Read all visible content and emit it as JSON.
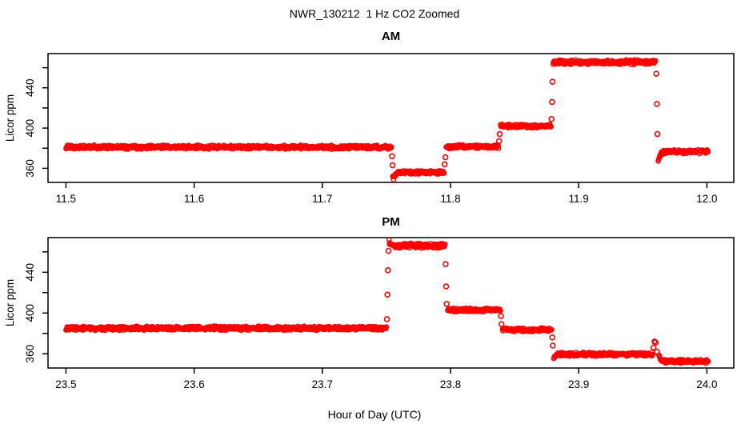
{
  "figure": {
    "title": "NWR_130212  1 Hz CO2 Zoomed",
    "xlabel": "Hour of Day (UTC)",
    "background_color": "#FFFFFF",
    "axis_color": "#000000",
    "point_color": "#FF0000"
  },
  "chart_data": [
    {
      "type": "scatter",
      "title": "AM",
      "ylabel": "Licor ppm",
      "marker": "open-circle",
      "color": "#FF0000",
      "sample_rate_hz": 1,
      "grid": false,
      "xlim": [
        11.486,
        12.021
      ],
      "ylim": [
        346,
        474
      ],
      "xticks": [
        "11.5",
        "11.6",
        "11.7",
        "11.8",
        "11.9",
        "12.0"
      ],
      "yticks": [
        360,
        380,
        400,
        420,
        440,
        460
      ],
      "ytick_labels": [
        "360",
        "",
        "400",
        "",
        "440",
        ""
      ],
      "segments": [
        {
          "x_start": 11.5,
          "x_end": 11.754,
          "ppm": 381.0,
          "noise": 1.5
        },
        {
          "x_start": 11.7556,
          "x_end": 11.795,
          "ppm": 356.0,
          "noise": 1.4,
          "start_settle_from": 349
        },
        {
          "x_start": 11.7966,
          "x_end": 11.8375,
          "ppm": 381.5,
          "noise": 1.4
        },
        {
          "x_start": 11.839,
          "x_end": 11.8785,
          "ppm": 402.0,
          "noise": 1.4
        },
        {
          "x_start": 11.88,
          "x_end": 11.96,
          "ppm": 465.5,
          "noise": 1.8
        },
        {
          "x_start": 11.962,
          "x_end": 12.001,
          "ppm": 376.5,
          "noise": 1.5,
          "start_settle_from": 366
        }
      ],
      "transition_points": [
        {
          "x": 11.7544,
          "ppm": 372
        },
        {
          "x": 11.7548,
          "ppm": 363
        },
        {
          "x": 11.7552,
          "ppm": 352
        },
        {
          "x": 11.7954,
          "ppm": 364
        },
        {
          "x": 11.796,
          "ppm": 371
        },
        {
          "x": 11.8379,
          "ppm": 387
        },
        {
          "x": 11.8384,
          "ppm": 394
        },
        {
          "x": 11.8788,
          "ppm": 409
        },
        {
          "x": 11.8792,
          "ppm": 426
        },
        {
          "x": 11.8796,
          "ppm": 446
        },
        {
          "x": 11.9606,
          "ppm": 454
        },
        {
          "x": 11.961,
          "ppm": 424
        },
        {
          "x": 11.9614,
          "ppm": 394
        }
      ]
    },
    {
      "type": "scatter",
      "title": "PM",
      "ylabel": "Licor ppm",
      "marker": "open-circle",
      "color": "#FF0000",
      "sample_rate_hz": 1,
      "grid": false,
      "xlim": [
        23.486,
        24.021
      ],
      "ylim": [
        346,
        474
      ],
      "xticks": [
        "23.5",
        "23.6",
        "23.7",
        "23.8",
        "23.9",
        "24.0"
      ],
      "yticks": [
        360,
        380,
        400,
        420,
        440,
        460
      ],
      "ytick_labels": [
        "360",
        "",
        "400",
        "",
        "440",
        ""
      ],
      "segments": [
        {
          "x_start": 23.5,
          "x_end": 23.75,
          "ppm": 385.0,
          "noise": 1.5
        },
        {
          "x_start": 23.752,
          "x_end": 23.7958,
          "ppm": 466.0,
          "noise": 1.8,
          "start_settle_from": 470
        },
        {
          "x_start": 23.7978,
          "x_end": 23.839,
          "ppm": 403.0,
          "noise": 1.4
        },
        {
          "x_start": 23.8405,
          "x_end": 23.879,
          "ppm": 383.5,
          "noise": 1.4
        },
        {
          "x_start": 23.8805,
          "x_end": 23.9578,
          "ppm": 359.5,
          "noise": 1.4,
          "start_settle_from": 355
        },
        {
          "x_start": 23.9625,
          "x_end": 24.001,
          "ppm": 352.5,
          "noise": 1.3,
          "start_settle_from": 359
        }
      ],
      "transition_points": [
        {
          "x": 23.7504,
          "ppm": 394
        },
        {
          "x": 23.7508,
          "ppm": 418
        },
        {
          "x": 23.7512,
          "ppm": 442
        },
        {
          "x": 23.7516,
          "ppm": 461
        },
        {
          "x": 23.7962,
          "ppm": 448
        },
        {
          "x": 23.7966,
          "ppm": 426
        },
        {
          "x": 23.797,
          "ppm": 409
        },
        {
          "x": 23.8394,
          "ppm": 397
        },
        {
          "x": 23.8398,
          "ppm": 389
        },
        {
          "x": 23.8794,
          "ppm": 376
        },
        {
          "x": 23.8798,
          "ppm": 368
        },
        {
          "x": 23.9584,
          "ppm": 366
        },
        {
          "x": 23.9592,
          "ppm": 372
        },
        {
          "x": 23.96,
          "ppm": 371
        },
        {
          "x": 23.961,
          "ppm": 362
        }
      ]
    }
  ]
}
